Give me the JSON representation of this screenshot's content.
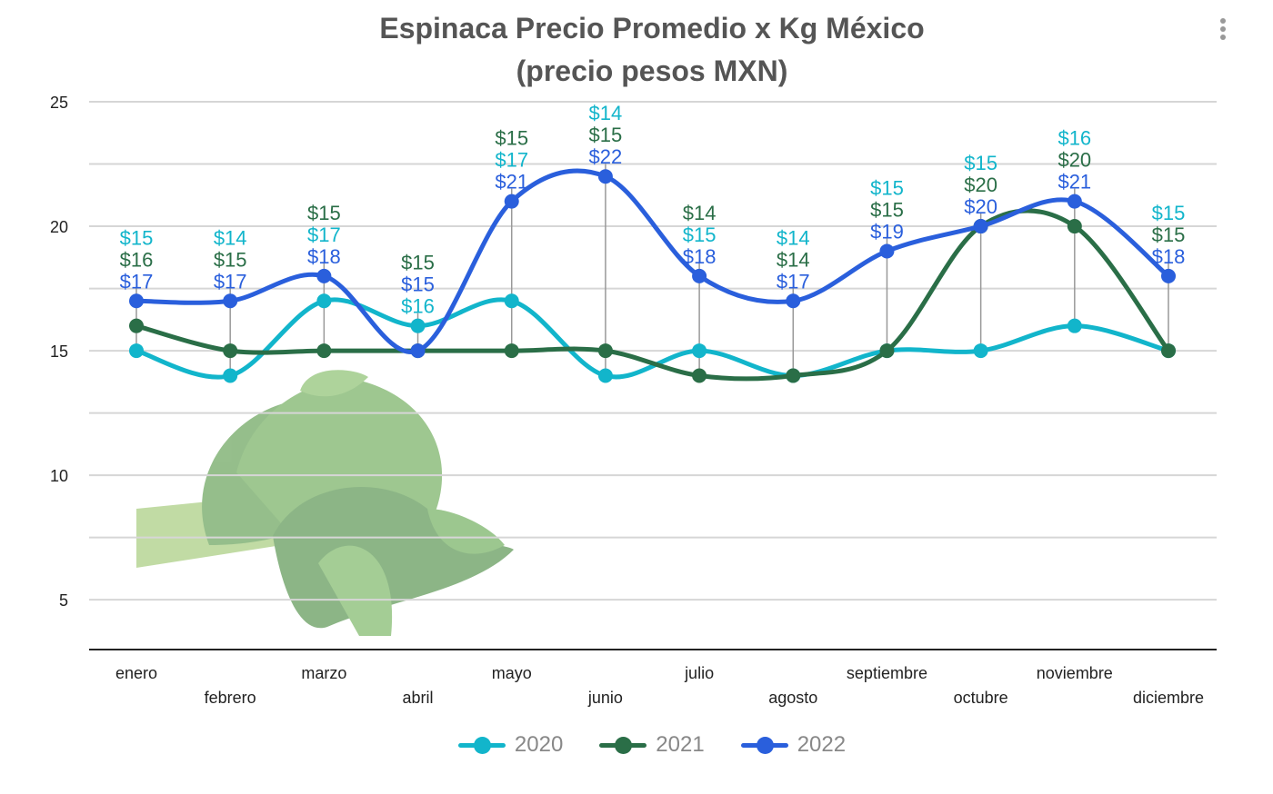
{
  "chart_data": {
    "type": "line",
    "title": "Espinaca Precio Promedio x Kg México",
    "subtitle": "(precio pesos MXN)",
    "categories": [
      "enero",
      "febrero",
      "marzo",
      "abril",
      "mayo",
      "junio",
      "julio",
      "agosto",
      "septiembre",
      "octubre",
      "noviembre",
      "diciembre"
    ],
    "series": [
      {
        "name": "2020",
        "color": "#12b5cb",
        "values": [
          15,
          14,
          17,
          16,
          17,
          14,
          15,
          14,
          15,
          15,
          16,
          15
        ]
      },
      {
        "name": "2021",
        "color": "#2a6e47",
        "values": [
          16,
          15,
          15,
          15,
          15,
          15,
          14,
          14,
          15,
          20,
          20,
          15
        ]
      },
      {
        "name": "2022",
        "color": "#2a5fdc",
        "values": [
          17,
          17,
          18,
          15,
          21,
          22,
          18,
          17,
          19,
          20,
          21,
          18
        ]
      }
    ],
    "data_label_prefix": "$",
    "ylim": [
      3,
      25
    ],
    "yticks": [
      5,
      10,
      15,
      20,
      25
    ],
    "grid": true,
    "smooth": true,
    "legend": "bottom",
    "background_image": "spinach-bunch"
  }
}
